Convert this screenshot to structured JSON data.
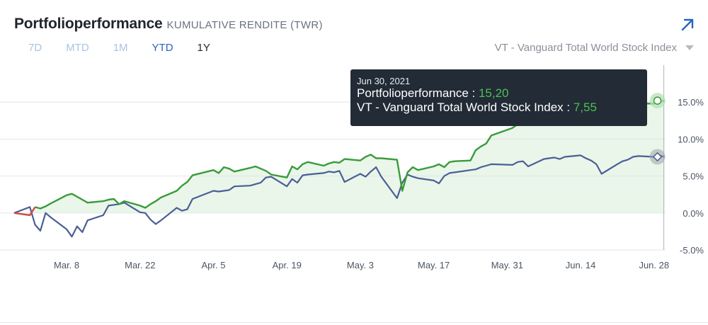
{
  "header": {
    "title": "Portfolioperformance",
    "subtitle": "KUMULATIVE RENDITE (TWR)"
  },
  "range_tabs": [
    {
      "label": "7D",
      "state": "inactive"
    },
    {
      "label": "MTD",
      "state": "inactive"
    },
    {
      "label": "1M",
      "state": "inactive"
    },
    {
      "label": "YTD",
      "state": "active"
    },
    {
      "label": "1Y",
      "state": "dark"
    }
  ],
  "benchmark": {
    "selected": "VT - Vanguard Total World Stock Index"
  },
  "tooltip": {
    "date": "Jun 30, 2021",
    "rows": [
      {
        "label": "Portfolioperformance : ",
        "value": "15,20"
      },
      {
        "label": "VT - Vanguard Total World Stock Index : ",
        "value": "7,55"
      }
    ]
  },
  "colors": {
    "portfolio": "#3a9b3a",
    "portfolio_fill": "#e9f6e9",
    "portfolio_negative": "#d64545",
    "benchmark": "#4a5f95",
    "grid": "#e3e5e8",
    "axis_text": "#4b5563"
  },
  "icons": {
    "expand": "arrow-up-right-icon",
    "dropdown": "caret-down-icon"
  },
  "chart_data": {
    "type": "line",
    "ylim": [
      -5,
      20
    ],
    "yticks": [
      "-5.0%",
      "0.0%",
      "5.0%",
      "10.0%",
      "15.0%"
    ],
    "ytick_values": [
      -5,
      0,
      5,
      10,
      15
    ],
    "xticks": [
      "Mar. 8",
      "Mar. 22",
      "Apr. 5",
      "Apr. 19",
      "May. 3",
      "May. 17",
      "May. 31",
      "Jun. 14",
      "Jun. 28"
    ],
    "xtick_dates": [
      "2021-03-08",
      "2021-03-22",
      "2021-04-05",
      "2021-04-19",
      "2021-05-03",
      "2021-05-17",
      "2021-05-31",
      "2021-06-14",
      "2021-06-28"
    ],
    "x_range": [
      "2021-02-26",
      "2021-07-01"
    ],
    "grid": true,
    "series": [
      {
        "name": "Portfolioperformance",
        "x": [
          "2021-02-26",
          "2021-03-01",
          "2021-03-02",
          "2021-03-03",
          "2021-03-04",
          "2021-03-05",
          "2021-03-08",
          "2021-03-09",
          "2021-03-10",
          "2021-03-11",
          "2021-03-12",
          "2021-03-15",
          "2021-03-16",
          "2021-03-17",
          "2021-03-18",
          "2021-03-19",
          "2021-03-22",
          "2021-03-23",
          "2021-03-24",
          "2021-03-25",
          "2021-03-26",
          "2021-03-29",
          "2021-03-30",
          "2021-03-31",
          "2021-04-01",
          "2021-04-05",
          "2021-04-06",
          "2021-04-07",
          "2021-04-08",
          "2021-04-09",
          "2021-04-12",
          "2021-04-13",
          "2021-04-14",
          "2021-04-15",
          "2021-04-16",
          "2021-04-19",
          "2021-04-20",
          "2021-04-21",
          "2021-04-22",
          "2021-04-23",
          "2021-04-26",
          "2021-04-27",
          "2021-04-28",
          "2021-04-29",
          "2021-04-30",
          "2021-05-03",
          "2021-05-04",
          "2021-05-05",
          "2021-05-06",
          "2021-05-07",
          "2021-05-10",
          "2021-05-11",
          "2021-05-12",
          "2021-05-13",
          "2021-05-14",
          "2021-05-17",
          "2021-05-18",
          "2021-05-19",
          "2021-05-20",
          "2021-05-21",
          "2021-05-24",
          "2021-05-25",
          "2021-05-26",
          "2021-05-27",
          "2021-05-28",
          "2021-06-01",
          "2021-06-02",
          "2021-06-03",
          "2021-06-04",
          "2021-06-07",
          "2021-06-08",
          "2021-06-09",
          "2021-06-10",
          "2021-06-11",
          "2021-06-14",
          "2021-06-15",
          "2021-06-16",
          "2021-06-17",
          "2021-06-18",
          "2021-06-21",
          "2021-06-22",
          "2021-06-23",
          "2021-06-24",
          "2021-06-25",
          "2021-06-28",
          "2021-06-29",
          "2021-06-30"
        ],
        "values": [
          0.0,
          -0.3,
          0.8,
          0.6,
          0.9,
          1.3,
          2.4,
          2.6,
          2.2,
          1.8,
          1.4,
          1.6,
          1.8,
          1.9,
          1.2,
          1.6,
          1.0,
          0.7,
          1.2,
          1.6,
          2.1,
          3.0,
          3.7,
          4.2,
          5.1,
          5.8,
          5.4,
          6.2,
          6.0,
          5.6,
          6.1,
          6.3,
          6.0,
          5.7,
          5.2,
          4.8,
          6.3,
          5.9,
          6.6,
          6.9,
          6.4,
          6.7,
          6.9,
          6.8,
          7.3,
          7.1,
          7.6,
          7.9,
          7.4,
          7.4,
          7.2,
          3.0,
          5.5,
          6.2,
          5.8,
          6.3,
          6.6,
          6.2,
          6.9,
          7.0,
          7.1,
          8.5,
          9.0,
          9.4,
          10.5,
          11.5,
          12.0,
          12.4,
          12.2,
          12.8,
          13.1,
          13.4,
          13.8,
          13.6,
          14.0,
          13.7,
          14.4,
          14.0,
          14.7,
          14.3,
          14.9,
          14.6,
          14.9,
          14.8,
          14.8,
          15.1,
          15.2
        ]
      },
      {
        "name": "VT - Vanguard Total World Stock Index",
        "x": [
          "2021-02-26",
          "2021-03-01",
          "2021-03-02",
          "2021-03-03",
          "2021-03-04",
          "2021-03-05",
          "2021-03-08",
          "2021-03-09",
          "2021-03-10",
          "2021-03-11",
          "2021-03-12",
          "2021-03-15",
          "2021-03-16",
          "2021-03-17",
          "2021-03-18",
          "2021-03-19",
          "2021-03-22",
          "2021-03-23",
          "2021-03-24",
          "2021-03-25",
          "2021-03-26",
          "2021-03-29",
          "2021-03-30",
          "2021-03-31",
          "2021-04-01",
          "2021-04-05",
          "2021-04-06",
          "2021-04-07",
          "2021-04-08",
          "2021-04-09",
          "2021-04-12",
          "2021-04-13",
          "2021-04-14",
          "2021-04-15",
          "2021-04-16",
          "2021-04-19",
          "2021-04-20",
          "2021-04-21",
          "2021-04-22",
          "2021-04-23",
          "2021-04-26",
          "2021-04-27",
          "2021-04-28",
          "2021-04-29",
          "2021-04-30",
          "2021-05-03",
          "2021-05-04",
          "2021-05-05",
          "2021-05-06",
          "2021-05-07",
          "2021-05-10",
          "2021-05-11",
          "2021-05-12",
          "2021-05-13",
          "2021-05-14",
          "2021-05-17",
          "2021-05-18",
          "2021-05-19",
          "2021-05-20",
          "2021-05-21",
          "2021-05-24",
          "2021-05-25",
          "2021-05-26",
          "2021-05-27",
          "2021-05-28",
          "2021-06-01",
          "2021-06-02",
          "2021-06-03",
          "2021-06-04",
          "2021-06-07",
          "2021-06-08",
          "2021-06-09",
          "2021-06-10",
          "2021-06-11",
          "2021-06-14",
          "2021-06-15",
          "2021-06-16",
          "2021-06-17",
          "2021-06-18",
          "2021-06-21",
          "2021-06-22",
          "2021-06-23",
          "2021-06-24",
          "2021-06-25",
          "2021-06-28",
          "2021-06-29",
          "2021-06-30"
        ],
        "values": [
          0.0,
          0.8,
          -1.6,
          -2.4,
          0.0,
          -0.6,
          -2.2,
          -3.2,
          -1.8,
          -2.6,
          -1.0,
          -0.3,
          1.0,
          1.1,
          1.2,
          1.4,
          0.1,
          0.0,
          -0.9,
          -1.5,
          -1.0,
          0.7,
          0.3,
          0.5,
          1.9,
          3.0,
          2.9,
          3.0,
          3.1,
          3.6,
          3.7,
          3.9,
          4.1,
          4.8,
          4.9,
          3.6,
          4.6,
          4.1,
          5.1,
          5.2,
          5.4,
          5.6,
          5.5,
          5.7,
          4.2,
          5.3,
          4.9,
          5.6,
          6.2,
          4.9,
          2.0,
          4.1,
          5.2,
          4.9,
          4.7,
          4.4,
          4.0,
          5.0,
          5.4,
          5.5,
          5.8,
          5.9,
          6.2,
          6.4,
          6.6,
          6.5,
          6.9,
          7.0,
          6.3,
          7.3,
          7.4,
          7.5,
          7.3,
          7.6,
          7.8,
          7.4,
          7.1,
          6.6,
          5.3,
          6.6,
          7.0,
          7.2,
          7.6,
          7.7,
          7.6,
          7.8,
          7.6
        ]
      }
    ]
  }
}
